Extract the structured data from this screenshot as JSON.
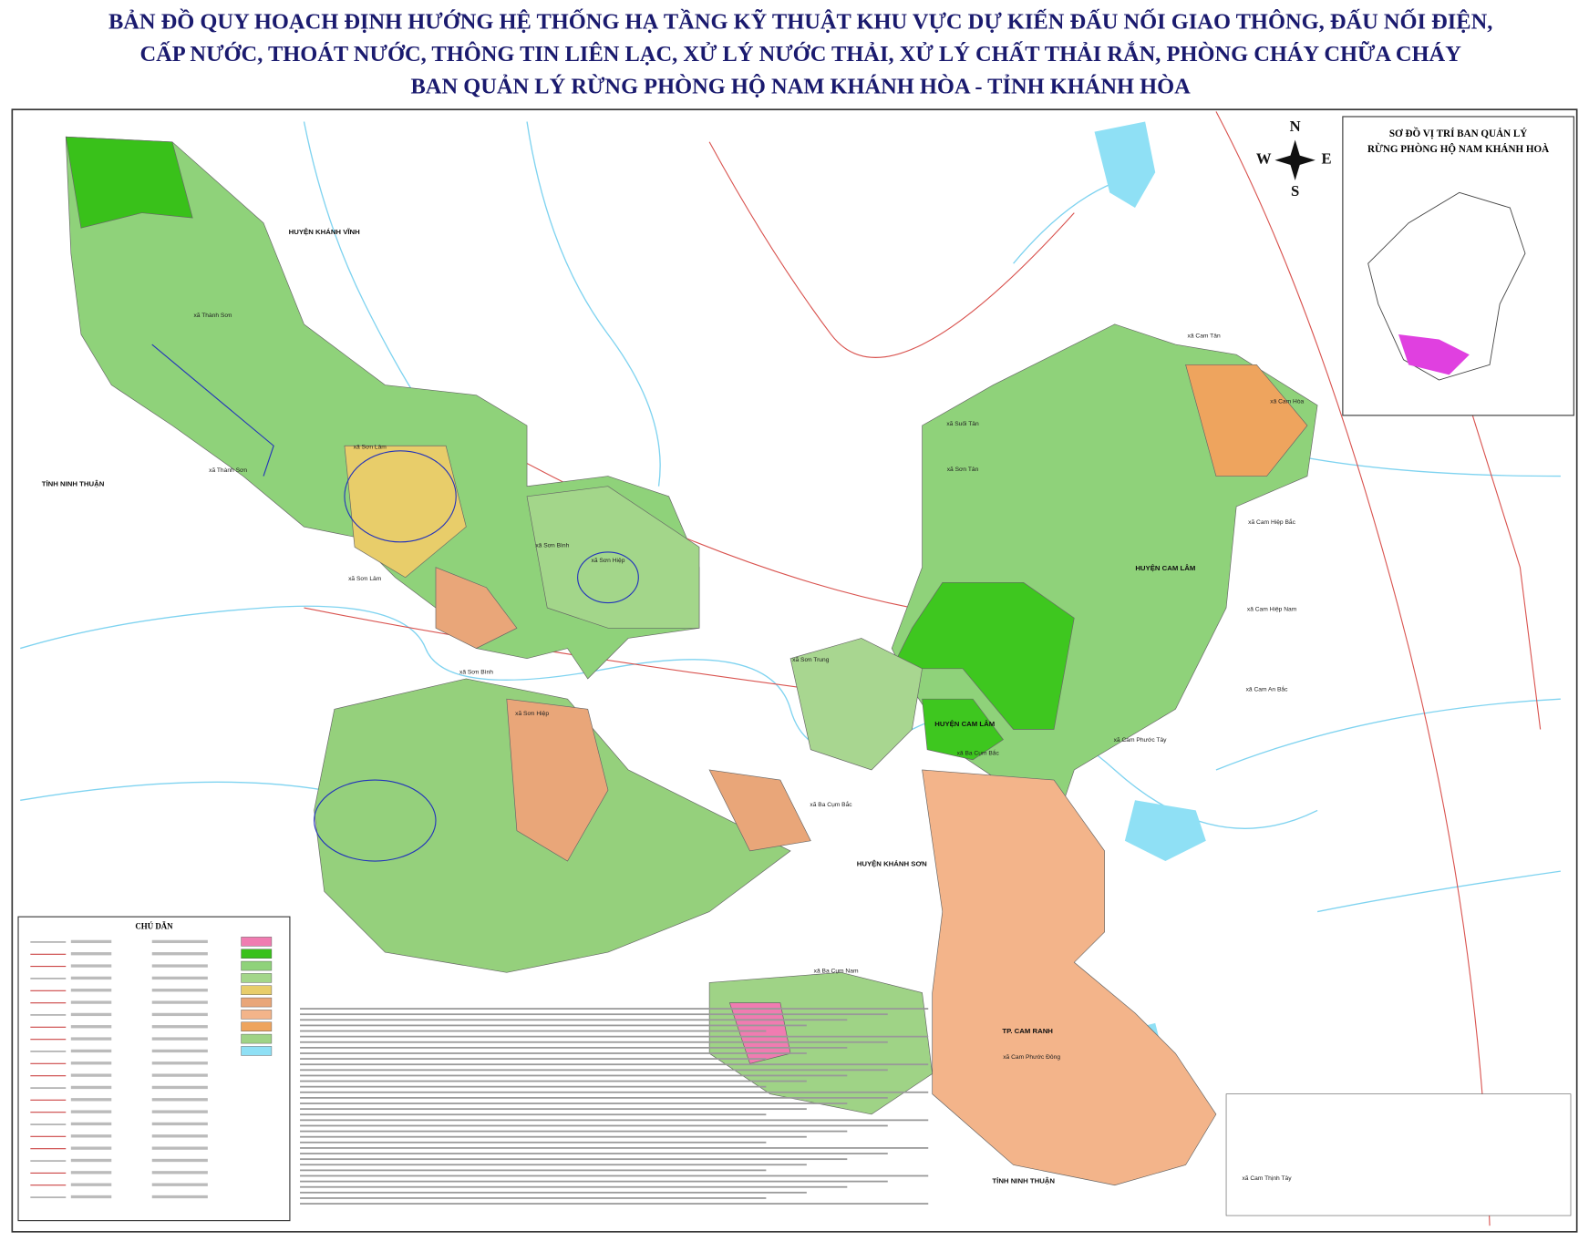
{
  "header": {
    "title_lines": [
      "BẢN ĐỒ QUY HOẠCH ĐỊNH HƯỚNG HỆ THỐNG HẠ TẦNG KỸ THUẬT KHU VỰC DỰ KIẾN ĐẤU NỐI GIAO THÔNG, ĐẤU NỐI ĐIỆN,",
      "CẤP NƯỚC, THOÁT NƯỚC, THÔNG TIN LIÊN LẠC, XỬ LÝ NƯỚC THẢI, XỬ LÝ CHẤT THẢI RẮN, PHÒNG CHÁY CHỮA CHÁY",
      "BAN QUẢN LÝ RỪNG PHÒNG HỘ NAM KHÁNH HÒA - TỈNH KHÁNH HÒA"
    ]
  },
  "compass": {
    "north": "N",
    "south": "S",
    "east": "E",
    "west": "W"
  },
  "inset": {
    "title_lines": [
      "SƠ ĐỒ VỊ TRÍ BAN QUẢN LÝ",
      "RỪNG PHÒNG HỘ NAM KHÁNH HOÀ"
    ]
  },
  "legend": {
    "title": "CHÚ DẪN"
  },
  "map": {
    "districts": [
      "HUYỆN KHÁNH VĨNH",
      "TỈNH NINH THUẬN",
      "HUYỆN CAM LÂM",
      "HUYỆN CAM LÂM",
      "HUYỆN KHÁNH SƠN",
      "TP. CAM RANH",
      "TỈNH NINH THUẬN"
    ],
    "places": [
      "xã Thành Sơn",
      "xã Thành Sơn",
      "xã Sơn Lâm",
      "xã Sơn Bình",
      "xã Sơn Hiệp",
      "xã Sơn Lâm",
      "xã Sơn Bình",
      "xã Sơn Hiệp",
      "xã Sơn Trung",
      "xã Suối Tân",
      "xã Sơn Tân",
      "xã Cam Tân",
      "xã Cam Hòa",
      "xã Cam Hiệp Bắc",
      "xã Cam Hiệp Nam",
      "xã Cam An Bắc",
      "xã Cam Phước Tây",
      "xã Ba Cụm Bắc",
      "xã Ba Cụm Bắc",
      "xã Ba Cụm Nam",
      "xã Cam Phước Đông",
      "xã Cam Thịnh Tây"
    ]
  }
}
